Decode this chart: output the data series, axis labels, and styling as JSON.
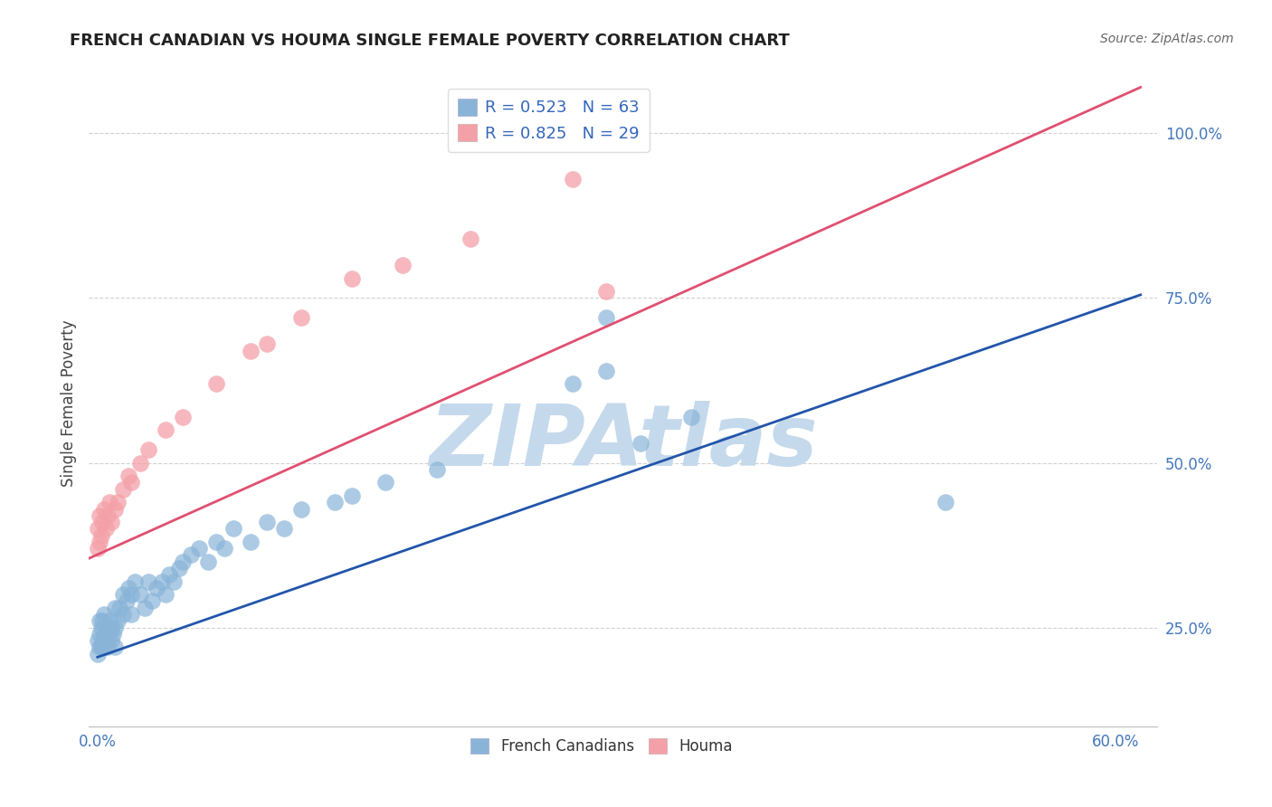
{
  "title": "FRENCH CANADIAN VS HOUMA SINGLE FEMALE POVERTY CORRELATION CHART",
  "source": "Source: ZipAtlas.com",
  "ylabel_label": "Single Female Poverty",
  "x_min": -0.005,
  "x_max": 0.625,
  "y_min": 0.1,
  "y_max": 1.08,
  "french_R": 0.523,
  "french_N": 63,
  "houma_R": 0.825,
  "houma_N": 29,
  "french_color": "#89B4D8",
  "houma_color": "#F4A0A8",
  "french_line_color": "#2255AA",
  "houma_line_color": "#E05070",
  "watermark_color": "#C5D9EC",
  "legend_french_label": "French Canadians",
  "legend_houma_label": "Houma",
  "blue_line_x": [
    0.0,
    0.615
  ],
  "blue_line_y": [
    0.205,
    0.755
  ],
  "pink_line_x": [
    -0.005,
    0.615
  ],
  "pink_line_y": [
    0.355,
    1.07
  ],
  "french_x": [
    0.0,
    0.0,
    0.001,
    0.001,
    0.001,
    0.002,
    0.002,
    0.003,
    0.003,
    0.004,
    0.004,
    0.004,
    0.005,
    0.005,
    0.006,
    0.006,
    0.007,
    0.008,
    0.008,
    0.009,
    0.01,
    0.01,
    0.01,
    0.012,
    0.013,
    0.015,
    0.015,
    0.017,
    0.018,
    0.02,
    0.02,
    0.022,
    0.025,
    0.028,
    0.03,
    0.032,
    0.035,
    0.038,
    0.04,
    0.042,
    0.045,
    0.048,
    0.05,
    0.055,
    0.06,
    0.065,
    0.07,
    0.075,
    0.08,
    0.09,
    0.1,
    0.11,
    0.12,
    0.14,
    0.15,
    0.17,
    0.2,
    0.28,
    0.3,
    0.32,
    0.35,
    0.5,
    0.3
  ],
  "french_y": [
    0.21,
    0.23,
    0.22,
    0.24,
    0.26,
    0.22,
    0.25,
    0.23,
    0.26,
    0.22,
    0.24,
    0.27,
    0.23,
    0.25,
    0.22,
    0.24,
    0.26,
    0.23,
    0.25,
    0.24,
    0.22,
    0.25,
    0.28,
    0.26,
    0.28,
    0.27,
    0.3,
    0.29,
    0.31,
    0.27,
    0.3,
    0.32,
    0.3,
    0.28,
    0.32,
    0.29,
    0.31,
    0.32,
    0.3,
    0.33,
    0.32,
    0.34,
    0.35,
    0.36,
    0.37,
    0.35,
    0.38,
    0.37,
    0.4,
    0.38,
    0.41,
    0.4,
    0.43,
    0.44,
    0.45,
    0.47,
    0.49,
    0.62,
    0.64,
    0.53,
    0.57,
    0.44,
    0.72
  ],
  "houma_x": [
    0.0,
    0.0,
    0.001,
    0.001,
    0.002,
    0.003,
    0.004,
    0.005,
    0.006,
    0.007,
    0.008,
    0.01,
    0.012,
    0.015,
    0.018,
    0.02,
    0.025,
    0.03,
    0.04,
    0.05,
    0.07,
    0.09,
    0.1,
    0.12,
    0.15,
    0.18,
    0.22,
    0.28,
    0.3
  ],
  "houma_y": [
    0.37,
    0.4,
    0.38,
    0.42,
    0.39,
    0.41,
    0.43,
    0.4,
    0.42,
    0.44,
    0.41,
    0.43,
    0.44,
    0.46,
    0.48,
    0.47,
    0.5,
    0.52,
    0.55,
    0.57,
    0.62,
    0.67,
    0.68,
    0.72,
    0.78,
    0.8,
    0.84,
    0.93,
    0.76
  ]
}
